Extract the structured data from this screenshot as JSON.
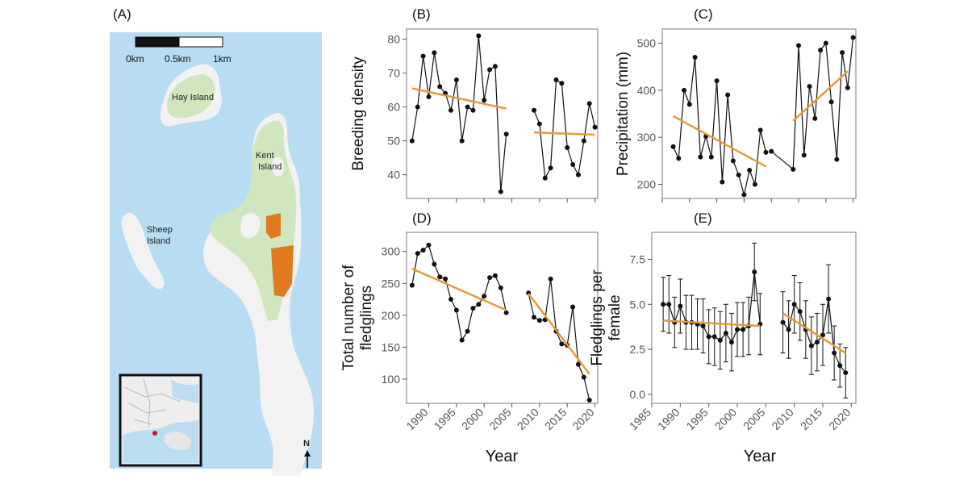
{
  "figure": {
    "map": {
      "panel_label": "(A)",
      "scale_labels": [
        "0km",
        "0.5km",
        "1km"
      ],
      "island_labels": {
        "hay": "Hay Island",
        "kent_1": "Kent",
        "kent_2": "Island",
        "sheep_1": "Sheep",
        "sheep_2": "Island"
      },
      "north_label": "N",
      "colors": {
        "water": "#b8dcf2",
        "land": "#f2f2f2",
        "vegetation": "#cfe6bf",
        "study_plots": "#e07a1f"
      }
    }
  },
  "colors": {
    "data": "#111111",
    "trend": "#e69a3a",
    "panel_border": "#7a7a7a"
  },
  "chart_data": [
    {
      "panel": "(B)",
      "type": "line",
      "ylabel": "Breeding density",
      "xlabel": "",
      "xlim": [
        1986,
        2020.5
      ],
      "ylim": [
        33,
        83
      ],
      "yticks": [
        40,
        50,
        60,
        70,
        80
      ],
      "xticks": [],
      "series": [
        {
          "x": [
            1987,
            1988,
            1989,
            1990,
            1991,
            1992,
            1993,
            1994,
            1995,
            1996,
            1997,
            1998,
            1999,
            2000,
            2001,
            2002,
            2003,
            2004,
            2005
          ],
          "y": [
            50,
            60,
            75,
            63,
            76,
            66,
            64,
            59,
            68,
            50,
            60,
            59,
            81,
            62,
            71,
            72,
            35,
            52,
            null
          ]
        },
        {
          "x": [
            2009,
            2010,
            2011,
            2012,
            2013,
            2014,
            2015,
            2016,
            2017,
            2018,
            2019,
            2020
          ],
          "y": [
            59,
            55,
            39,
            42,
            68,
            67,
            48,
            43,
            40,
            50,
            61,
            54
          ]
        }
      ],
      "trends": [
        {
          "x": [
            1987,
            2004
          ],
          "y": [
            65.5,
            59.5
          ]
        },
        {
          "x": [
            2009,
            2020
          ],
          "y": [
            52.5,
            51.8
          ]
        }
      ]
    },
    {
      "panel": "(C)",
      "type": "line",
      "ylabel": "Precipitation (mm)",
      "xlabel": "",
      "xlim": [
        1985,
        2020.5
      ],
      "ylim": [
        170,
        530
      ],
      "yticks": [
        200,
        300,
        400,
        500
      ],
      "xticks": [],
      "series": [
        {
          "x": [
            1987,
            1988,
            1989,
            1990,
            1991,
            1992,
            1993,
            1994,
            1995,
            1996,
            1997,
            1998,
            1999,
            2000,
            2001,
            2002,
            2003,
            2004
          ],
          "y": [
            280,
            255,
            400,
            370,
            470,
            258,
            302,
            258,
            420,
            205,
            390,
            250,
            220,
            178,
            230,
            200,
            315,
            268
          ]
        },
        {
          "x": [
            2005,
            2009,
            2010,
            2011,
            2012,
            2013,
            2014,
            2015,
            2016,
            2017,
            2018,
            2019,
            2020
          ],
          "y": [
            270,
            232,
            495,
            262,
            408,
            340,
            485,
            500,
            375,
            253,
            480,
            405,
            512
          ]
        }
      ],
      "trends": [
        {
          "x": [
            1987,
            2004
          ],
          "y": [
            345,
            238
          ]
        },
        {
          "x": [
            2009,
            2019
          ],
          "y": [
            335,
            440
          ]
        }
      ]
    },
    {
      "panel": "(D)",
      "type": "line",
      "ylabel": "Total number of",
      "ylabel_2": "fledglings",
      "xlabel": "Year",
      "xlim": [
        1986,
        2020.5
      ],
      "ylim": [
        62,
        330
      ],
      "yticks": [
        100,
        150,
        200,
        250,
        300
      ],
      "xticks": [
        1990,
        1995,
        2000,
        2005,
        2010,
        2015,
        2020
      ],
      "series": [
        {
          "x": [
            1987,
            1988,
            1989,
            1990,
            1991,
            1992,
            1993,
            1994,
            1995,
            1996,
            1997,
            1998,
            1999,
            2000,
            2001,
            2002,
            2003,
            2004
          ],
          "y": [
            247,
            297,
            302,
            310,
            280,
            260,
            257,
            225,
            208,
            161,
            175,
            211,
            217,
            230,
            259,
            262,
            243,
            204
          ]
        },
        {
          "x": [
            2008,
            2009,
            2010,
            2011,
            2012,
            2013,
            2014,
            2015,
            2016,
            2017,
            2018,
            2019
          ],
          "y": [
            235,
            197,
            192,
            193,
            257,
            175,
            155,
            153,
            213,
            123,
            103,
            67
          ]
        }
      ],
      "trends": [
        {
          "x": [
            1987,
            2004
          ],
          "y": [
            273,
            208
          ]
        },
        {
          "x": [
            2008,
            2019
          ],
          "y": [
            234,
            108
          ]
        }
      ]
    },
    {
      "panel": "(E)",
      "type": "line",
      "ylabel": "Fledglings per",
      "ylabel_2": "female",
      "xlabel": "Year",
      "xlim": [
        1985,
        2020.8
      ],
      "ylim": [
        -0.5,
        9.0
      ],
      "yticks": [
        0.0,
        2.5,
        5.0,
        7.5
      ],
      "ytick_labels": [
        "0.0",
        "2.5",
        "5.0",
        "7.5"
      ],
      "xticks": [
        1985,
        1990,
        1995,
        2000,
        2005,
        2010,
        2015,
        2020
      ],
      "series": [
        {
          "x": [
            1987,
            1988,
            1989,
            1990,
            1991,
            1992,
            1993,
            1994,
            1995,
            1996,
            1997,
            1998,
            1999,
            2000,
            2001,
            2002,
            2003,
            2004
          ],
          "y": [
            5.0,
            5.0,
            4.0,
            4.9,
            4.0,
            4.0,
            3.9,
            3.8,
            3.2,
            3.2,
            3.0,
            3.4,
            2.9,
            3.6,
            3.6,
            3.8,
            6.8,
            3.9
          ],
          "err": [
            1.5,
            1.6,
            1.4,
            1.5,
            1.5,
            1.5,
            1.4,
            1.5,
            1.5,
            1.6,
            1.6,
            1.6,
            1.6,
            1.5,
            1.5,
            1.6,
            1.6,
            1.7
          ]
        },
        {
          "x": [
            2008,
            2009,
            2010,
            2011,
            2012,
            2013,
            2014,
            2015,
            2016,
            2017,
            2018,
            2019
          ],
          "y": [
            4.0,
            3.6,
            5.0,
            4.6,
            3.6,
            2.7,
            2.9,
            3.3,
            5.3,
            2.3,
            1.6,
            1.2
          ],
          "err": [
            1.7,
            1.6,
            1.6,
            1.6,
            1.6,
            1.6,
            1.6,
            1.7,
            1.9,
            1.5,
            1.2,
            1.4
          ]
        }
      ],
      "trends": [
        {
          "x": [
            1987,
            2004
          ],
          "y": [
            4.1,
            3.8
          ]
        },
        {
          "x": [
            2008,
            2019
          ],
          "y": [
            4.5,
            2.3
          ]
        }
      ]
    }
  ]
}
